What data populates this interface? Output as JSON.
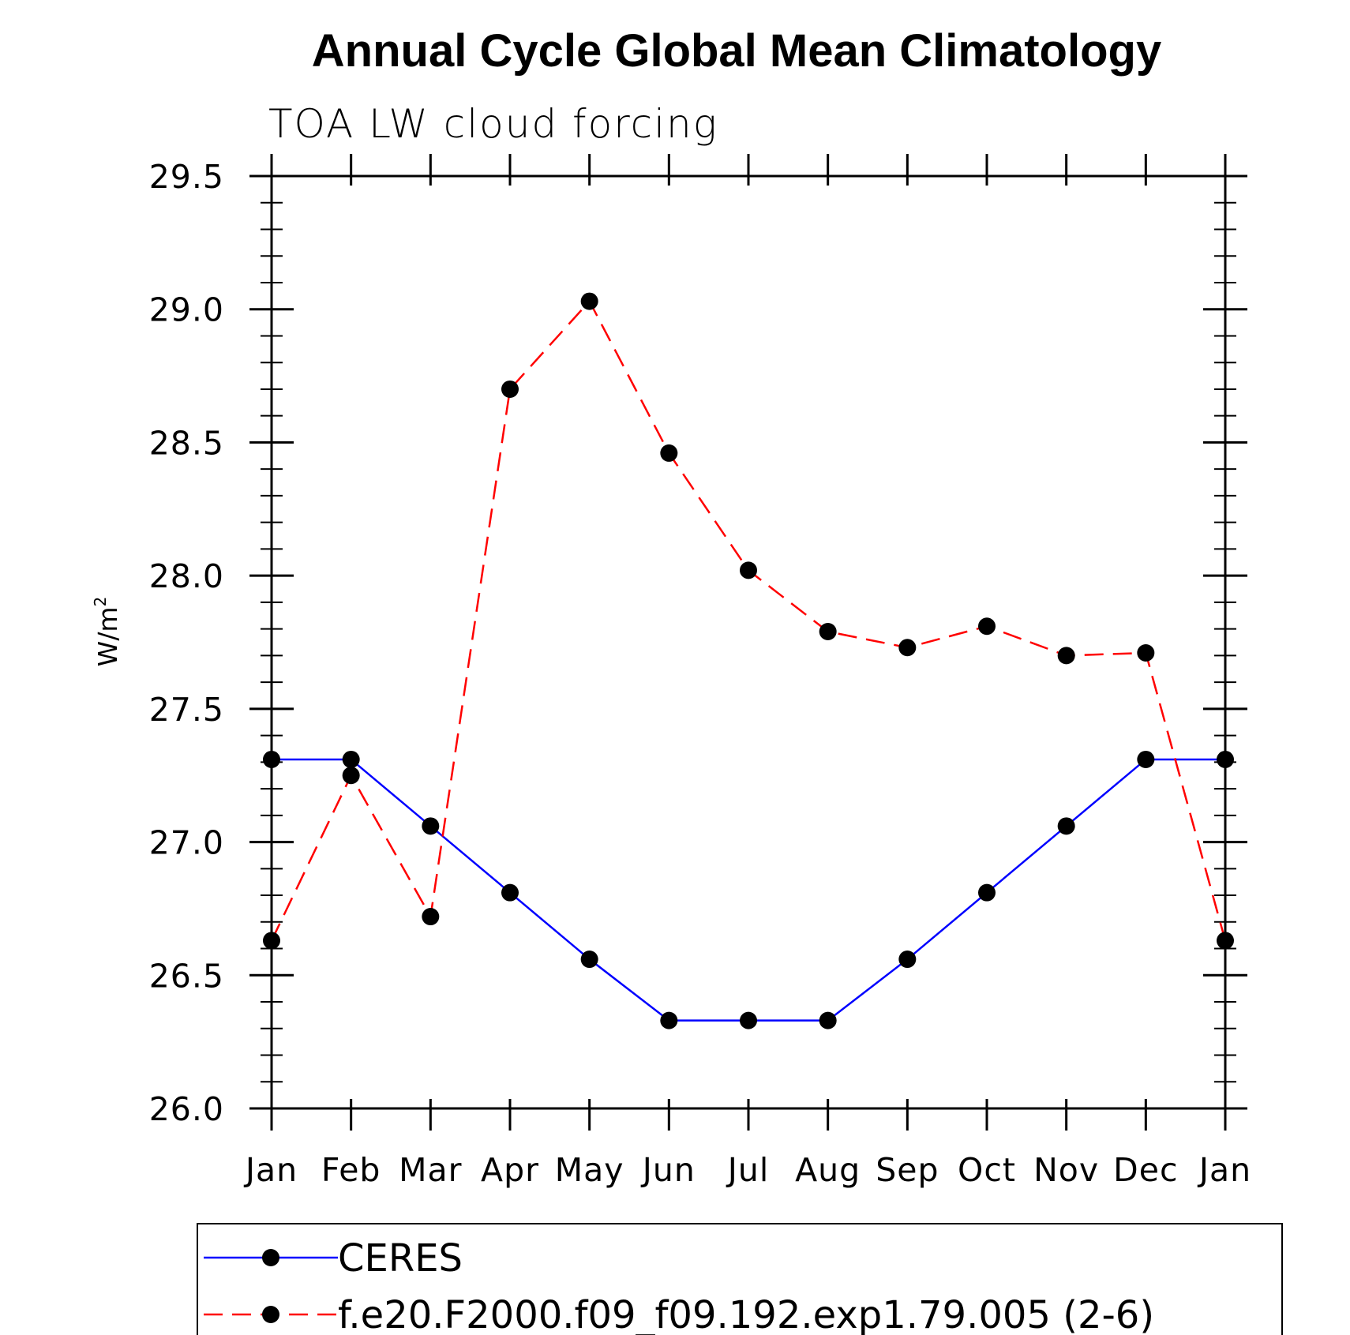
{
  "chart_data": {
    "type": "line",
    "title": "Annual Cycle Global Mean Climatology",
    "subtitle": "TOA LW cloud forcing",
    "ylabel": "W/m",
    "ylabel_superscript": "2",
    "xlabel": "",
    "categories": [
      "Jan",
      "Feb",
      "Mar",
      "Apr",
      "May",
      "Jun",
      "Jul",
      "Aug",
      "Sep",
      "Oct",
      "Nov",
      "Dec",
      "Jan"
    ],
    "ylim": [
      26.0,
      29.5
    ],
    "yticks": [
      "26.0",
      "26.5",
      "27.0",
      "27.5",
      "28.0",
      "28.5",
      "29.0",
      "29.5"
    ],
    "series": [
      {
        "name": "CERES",
        "color": "#0000ff",
        "line_style": "solid",
        "marker": "filled-circle",
        "marker_color": "#000000",
        "values": [
          27.31,
          27.31,
          27.06,
          26.81,
          26.56,
          26.33,
          26.33,
          26.33,
          26.56,
          26.81,
          27.06,
          27.31,
          27.31
        ]
      },
      {
        "name": "f.e20.F2000.f09_f09.192.exp1.79.005 (2-6)",
        "color": "#ff0000",
        "line_style": "dashed",
        "marker": "filled-circle",
        "marker_color": "#000000",
        "values": [
          26.63,
          27.25,
          26.72,
          28.7,
          29.03,
          28.46,
          28.02,
          27.79,
          27.73,
          27.81,
          27.7,
          27.71,
          26.63
        ]
      }
    ],
    "grid": false,
    "legend_position": "bottom"
  }
}
